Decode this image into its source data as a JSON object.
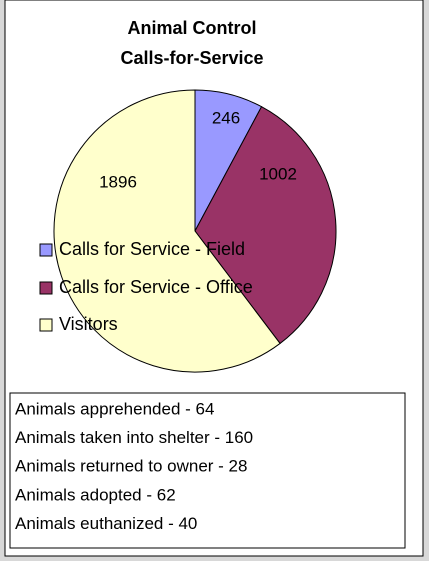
{
  "chart_data": {
    "type": "pie",
    "title_lines": [
      "Animal Control",
      "Calls-for-Service"
    ],
    "categories": [
      "Calls for Service - Field",
      "Calls for Service - Office",
      "Visitors"
    ],
    "values": [
      246,
      1002,
      1896
    ],
    "colors": [
      "#9999ff",
      "#993366",
      "#ffffcc"
    ],
    "legend": "left"
  },
  "textbox": {
    "lines": [
      "Animals apprehended - 64",
      "Animals taken into shelter - 160",
      "Animals returned to owner - 28",
      "Animals adopted - 62",
      "Animals euthanized - 40"
    ]
  }
}
